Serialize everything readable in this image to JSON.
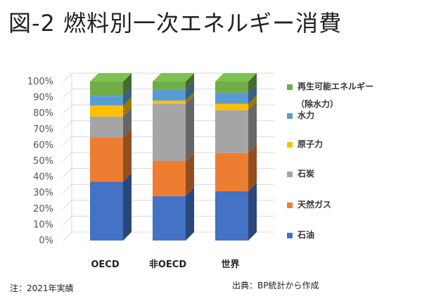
{
  "title": "図-2 燃料別一次エネルギー消費",
  "footnote": "注：2021年実績",
  "source": "出典：BP統計から作成",
  "legend_extra": "（除水力）",
  "colors": {
    "oil": "#4472c4",
    "gas": "#ed7d31",
    "coal": "#a5a5a5",
    "nuclear": "#ffc000",
    "hydro": "#5b9bd5",
    "renewables": "#70ad47"
  },
  "chart_data": {
    "type": "bar",
    "stacked": true,
    "categories": [
      "OECD",
      "非OECD",
      "世界"
    ],
    "series": [
      {
        "name": "石油",
        "color_key": "oil",
        "values": [
          37,
          28,
          31
        ]
      },
      {
        "name": "天然ガス",
        "color_key": "gas",
        "values": [
          28,
          22,
          24
        ]
      },
      {
        "name": "石炭",
        "color_key": "coal",
        "values": [
          13,
          36,
          27
        ]
      },
      {
        "name": "原子力",
        "color_key": "nuclear",
        "values": [
          7,
          2,
          4
        ]
      },
      {
        "name": "水力",
        "color_key": "hydro",
        "values": [
          6,
          7,
          7
        ]
      },
      {
        "name": "再生可能エネルギー",
        "color_key": "renewables",
        "values": [
          9,
          5,
          7
        ]
      }
    ],
    "y_ticks": [
      "0%",
      "10%",
      "20%",
      "30%",
      "40%",
      "50%",
      "60%",
      "70%",
      "80%",
      "90%",
      "100%"
    ],
    "ylim": [
      0,
      100
    ],
    "grid": true,
    "legend_position": "right"
  }
}
